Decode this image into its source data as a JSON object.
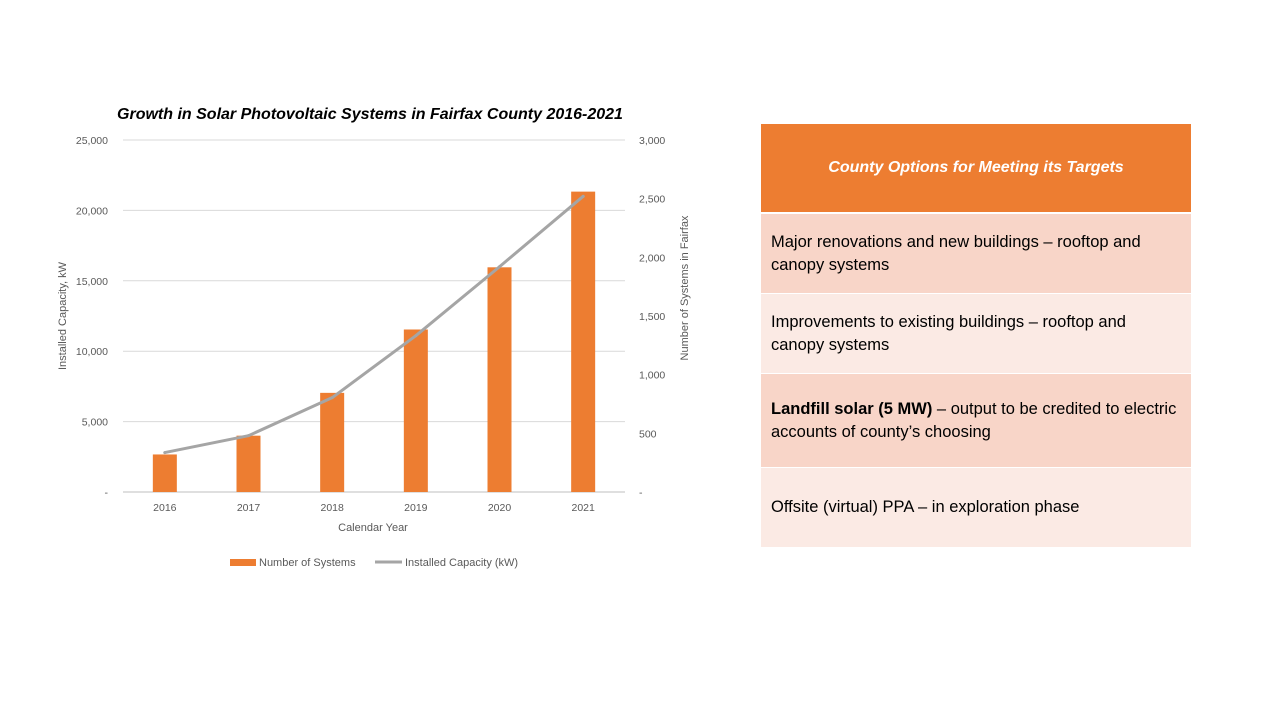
{
  "colors": {
    "accent": "#ed7d31",
    "line": "#a5a5a5",
    "row_dark": "#f8d5c8",
    "row_light": "#fbeae4"
  },
  "chart_data": {
    "type": "bar",
    "title": "Growth in Solar Photovoltaic Systems in Fairfax County 2016-2021",
    "xlabel": "Calendar Year",
    "ylabel_left": "Installed Capacity, kW",
    "ylabel_right": "Number  of Systems in Fairfax",
    "categories": [
      "2016",
      "2017",
      "2018",
      "2019",
      "2020",
      "2021"
    ],
    "left_axis": {
      "min": 0,
      "max": 25000,
      "ticks": [
        "-",
        "5,000",
        "10,000",
        "15,000",
        "20,000",
        "25,000"
      ]
    },
    "right_axis": {
      "min": 0,
      "max": 3000,
      "ticks": [
        "-",
        "500",
        "1,000",
        "1,500",
        "2,000",
        "2,500",
        "3,000"
      ]
    },
    "series": [
      {
        "name": "Number of Systems",
        "type": "bar",
        "axis": "right",
        "values": [
          320,
          480,
          845,
          1385,
          1915,
          2560
        ]
      },
      {
        "name": "Installed Capacity (kW)",
        "type": "line",
        "axis": "left",
        "values": [
          2800,
          4000,
          6700,
          11100,
          16000,
          21000
        ]
      }
    ],
    "grid": true,
    "legend": "bottom"
  },
  "options": {
    "header": "County Options for Meeting its Targets",
    "rows": [
      {
        "bold": "",
        "text": "Major renovations and new buildings – rooftop and canopy systems"
      },
      {
        "bold": "",
        "text": "Improvements to existing buildings – rooftop and canopy systems"
      },
      {
        "bold": "Landfill solar (5 MW)",
        "text": " – output to be credited to electric accounts of county’s choosing"
      },
      {
        "bold": "",
        "text": "Offsite (virtual) PPA – in exploration phase"
      }
    ]
  }
}
